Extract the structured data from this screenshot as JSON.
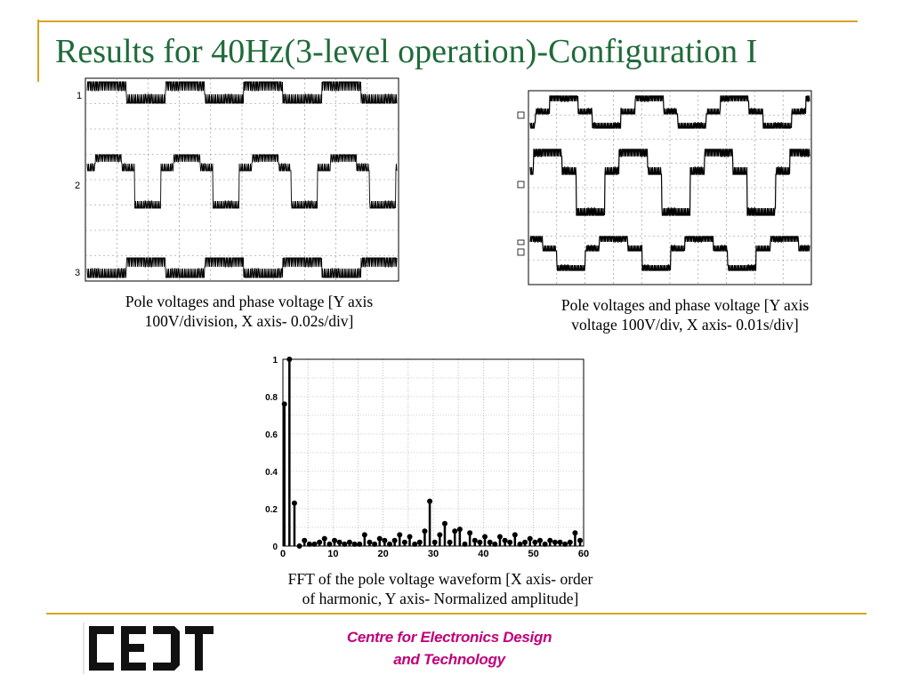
{
  "slide": {
    "title": "Results for 40Hz(3-level operation)-Configuration I",
    "accent_color": "#d9a520",
    "title_color": "#1f6b3a"
  },
  "scope_left": {
    "channel_labels": [
      "1",
      "2",
      "3"
    ],
    "caption_line1": "Pole voltages and phase voltage  [Y axis",
    "caption_line2": "100V/division, X axis- 0.02s/div]"
  },
  "scope_right": {
    "caption_line1": "Pole voltages and phase voltage  [Y axis",
    "caption_line2": "voltage 100V/div, X axis- 0.01s/div]"
  },
  "fft": {
    "caption_line1": "FFT of the pole voltage waveform [X axis- order",
    "caption_line2": "of harmonic, Y axis- Normalized amplitude]"
  },
  "chart_data": {
    "type": "bar",
    "x": [
      0,
      1,
      2,
      3,
      4,
      5,
      6,
      7,
      8,
      9,
      10,
      11,
      12,
      13,
      14,
      15,
      16,
      17,
      18,
      19,
      20,
      21,
      22,
      23,
      24,
      25,
      26,
      27,
      28,
      29,
      30,
      31,
      32,
      33,
      34,
      35,
      36,
      37,
      38,
      39,
      40,
      41,
      42,
      43,
      44,
      45,
      46,
      47,
      48,
      49,
      50,
      51,
      52,
      53,
      54,
      55,
      56,
      57,
      58,
      59
    ],
    "values": [
      0.76,
      1.0,
      0.23,
      0.0,
      0.03,
      0.01,
      0.01,
      0.02,
      0.04,
      0.01,
      0.03,
      0.02,
      0.01,
      0.02,
      0.01,
      0.01,
      0.06,
      0.02,
      0.01,
      0.04,
      0.03,
      0.01,
      0.03,
      0.06,
      0.02,
      0.05,
      0.01,
      0.02,
      0.08,
      0.24,
      0.02,
      0.06,
      0.12,
      0.02,
      0.08,
      0.09,
      0.01,
      0.07,
      0.03,
      0.02,
      0.05,
      0.02,
      0.01,
      0.05,
      0.03,
      0.02,
      0.06,
      0.01,
      0.02,
      0.04,
      0.02,
      0.03,
      0.01,
      0.03,
      0.02,
      0.02,
      0.01,
      0.02,
      0.07,
      0.03
    ],
    "xlim": [
      0,
      60
    ],
    "ylim": [
      0,
      1
    ],
    "xticks": [
      "0",
      "10",
      "20",
      "30",
      "40",
      "50",
      "60"
    ],
    "yticks": [
      "0",
      "0.2",
      "0.4",
      "0.6",
      "0.8",
      "1"
    ],
    "grid": true
  },
  "footer": {
    "logo_text": "CEDT",
    "line1": "Centre for Electronics Design",
    "line2": "and Technology",
    "text_color": "#c0007a"
  }
}
